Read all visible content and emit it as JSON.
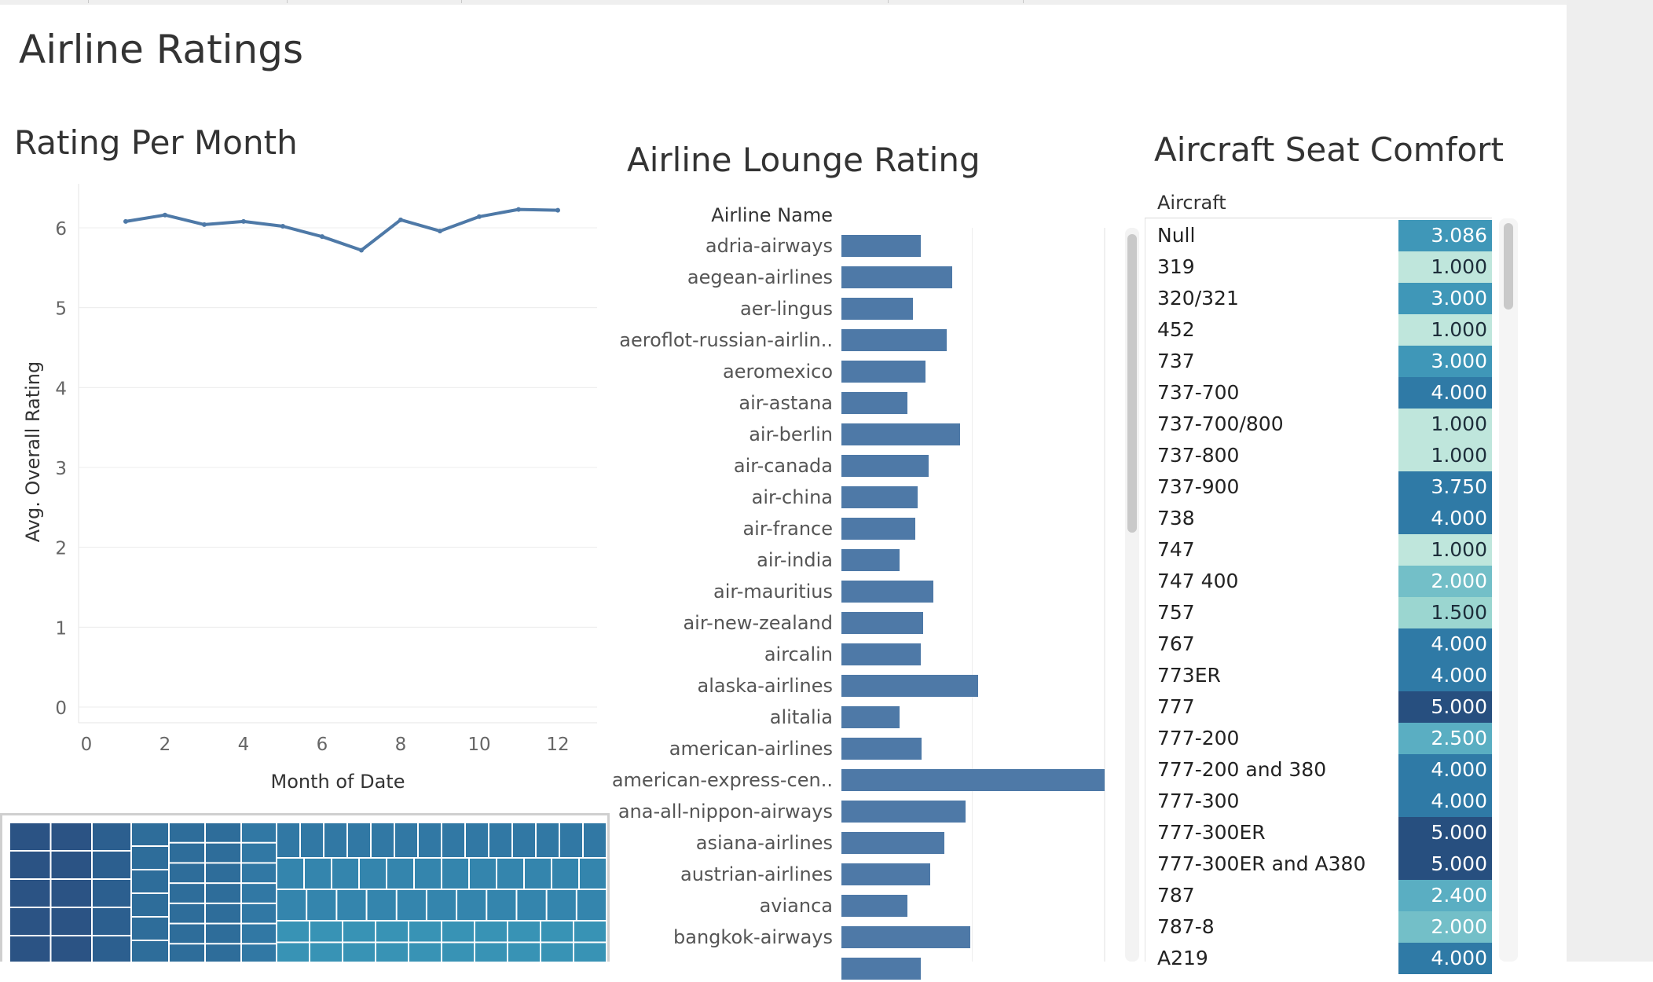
{
  "colors": {
    "accent": "#4e79a7",
    "line": "#4e79a7",
    "seat_scale": [
      "#bfe6dc",
      "#9bd6d0",
      "#73bfc8",
      "#5aaec2",
      "#3f97b8",
      "#2f7aa6",
      "#2a6292",
      "#274f7f"
    ]
  },
  "dashboard": {
    "title": "Airline Ratings"
  },
  "rating_per_month": {
    "title": "Rating Per Month",
    "chart_data": {
      "type": "line",
      "title": "Rating Per Month",
      "xlabel": "Month of Date",
      "ylabel": "Avg. Overall Rating",
      "xlim": [
        0,
        12
      ],
      "ylim": [
        0,
        6
      ],
      "xticks": [
        "0",
        "2",
        "4",
        "6",
        "8",
        "10",
        "12"
      ],
      "yticks": [
        "0",
        "1",
        "2",
        "3",
        "4",
        "5",
        "6"
      ],
      "grid": "horizontal",
      "series": [
        {
          "x": [
            1,
            2,
            3,
            4,
            5,
            6,
            7,
            8,
            9,
            10,
            11,
            12
          ],
          "values": [
            6.08,
            6.16,
            6.04,
            6.08,
            6.02,
            5.89,
            5.72,
            6.1,
            5.96,
            6.14,
            6.23,
            6.22
          ]
        }
      ]
    }
  },
  "lounge": {
    "title": "Airline Lounge Rating",
    "header": "Airline Name",
    "chart_data": {
      "type": "bar",
      "orientation": "horizontal",
      "title": "Airline Lounge Rating",
      "ylabel": "Airline Name",
      "xlim": [
        0,
        5
      ],
      "categories": [
        "adria-airways",
        "aegean-airlines",
        "aer-lingus",
        "aeroflot-russian-airlin..",
        "aeromexico",
        "air-astana",
        "air-berlin",
        "air-canada",
        "air-china",
        "air-france",
        "air-india",
        "air-mauritius",
        "air-new-zealand",
        "aircalin",
        "alaska-airlines",
        "alitalia",
        "american-airlines",
        "american-express-cen..",
        "ana-all-nippon-airways",
        "asiana-airlines",
        "austrian-airlines",
        "avianca",
        "bangkok-airways",
        ""
      ],
      "values": [
        1.5,
        2.1,
        1.35,
        2.0,
        1.6,
        1.25,
        2.25,
        1.65,
        1.45,
        1.4,
        1.1,
        1.75,
        1.55,
        1.5,
        2.6,
        1.1,
        1.52,
        5.0,
        2.35,
        1.95,
        1.68,
        1.25,
        2.45,
        1.5
      ]
    }
  },
  "seat": {
    "title": "Aircraft Seat Comfort",
    "header": "Aircraft",
    "rows": [
      {
        "aircraft": "Null",
        "value": "3.086",
        "level": 4
      },
      {
        "aircraft": "319",
        "value": "1.000",
        "level": 0
      },
      {
        "aircraft": "320/321",
        "value": "3.000",
        "level": 4
      },
      {
        "aircraft": "452",
        "value": "1.000",
        "level": 0
      },
      {
        "aircraft": "737",
        "value": "3.000",
        "level": 4
      },
      {
        "aircraft": "737-700",
        "value": "4.000",
        "level": 5
      },
      {
        "aircraft": "737-700/800",
        "value": "1.000",
        "level": 0
      },
      {
        "aircraft": "737-800",
        "value": "1.000",
        "level": 0
      },
      {
        "aircraft": "737-900",
        "value": "3.750",
        "level": 5
      },
      {
        "aircraft": "738",
        "value": "4.000",
        "level": 5
      },
      {
        "aircraft": "747",
        "value": "1.000",
        "level": 0
      },
      {
        "aircraft": "747 400",
        "value": "2.000",
        "level": 2
      },
      {
        "aircraft": "757",
        "value": "1.500",
        "level": 1
      },
      {
        "aircraft": "767",
        "value": "4.000",
        "level": 5
      },
      {
        "aircraft": "773ER",
        "value": "4.000",
        "level": 5
      },
      {
        "aircraft": "777",
        "value": "5.000",
        "level": 7
      },
      {
        "aircraft": "777-200",
        "value": "2.500",
        "level": 3
      },
      {
        "aircraft": "777-200 and 380",
        "value": "4.000",
        "level": 5
      },
      {
        "aircraft": "777-300",
        "value": "4.000",
        "level": 5
      },
      {
        "aircraft": "777-300ER",
        "value": "5.000",
        "level": 7
      },
      {
        "aircraft": "777-300ER and A380",
        "value": "5.000",
        "level": 7
      },
      {
        "aircraft": "787",
        "value": "2.400",
        "level": 3
      },
      {
        "aircraft": "787-8",
        "value": "2.000",
        "level": 2
      },
      {
        "aircraft": "A219",
        "value": "4.000",
        "level": 5
      }
    ]
  },
  "treemap": {
    "colors": [
      "#2b5384",
      "#2c5f8f",
      "#2e6d9a",
      "#3178a4",
      "#3485ad",
      "#3893b5"
    ]
  }
}
